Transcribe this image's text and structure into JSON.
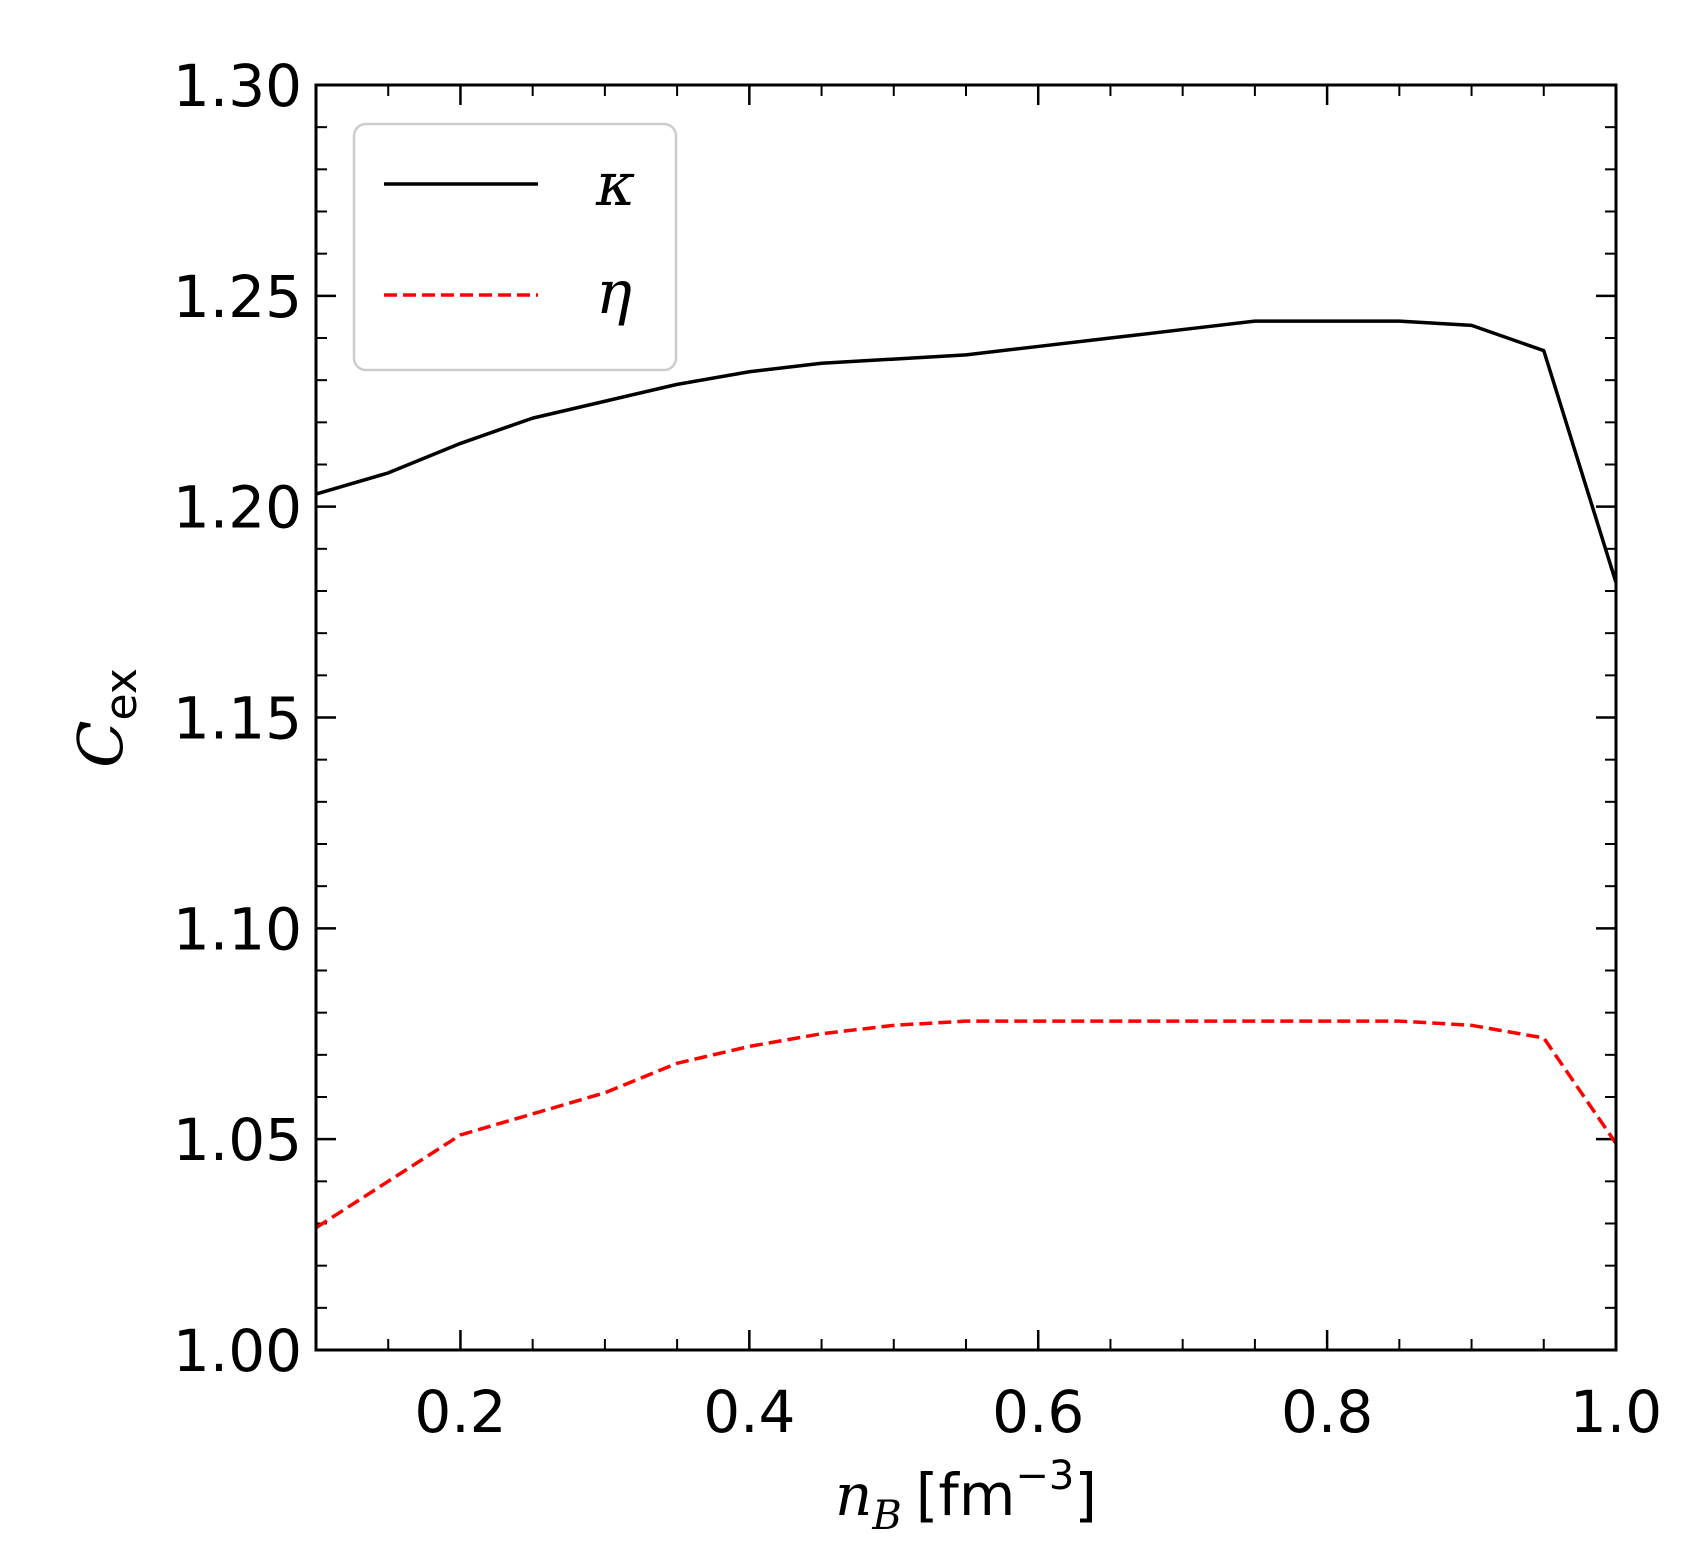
{
  "chart_data": {
    "type": "line",
    "title": "",
    "xlabel": {
      "var": "n",
      "sub": "B",
      "unit_open": "[fm",
      "exp": "−3",
      "unit_close": "]"
    },
    "ylabel": {
      "var": "C",
      "sub": "ex"
    },
    "xlim": [
      0.1,
      1.0
    ],
    "ylim": [
      1.0,
      1.3
    ],
    "xticks": [
      0.2,
      0.4,
      0.6,
      0.8,
      1.0
    ],
    "xtick_labels": [
      "0.2",
      "0.4",
      "0.6",
      "0.8",
      "1.0"
    ],
    "xminor_step": 0.05,
    "yticks": [
      1.0,
      1.05,
      1.1,
      1.15,
      1.2,
      1.25,
      1.3
    ],
    "ytick_labels": [
      "1.00",
      "1.05",
      "1.10",
      "1.15",
      "1.20",
      "1.25",
      "1.30"
    ],
    "yminor_step": 0.01,
    "grid": false,
    "legend_position": "top-left",
    "x": [
      0.1,
      0.15,
      0.2,
      0.25,
      0.3,
      0.35,
      0.4,
      0.45,
      0.5,
      0.55,
      0.6,
      0.65,
      0.7,
      0.75,
      0.8,
      0.85,
      0.9,
      0.95,
      1.0
    ],
    "series": [
      {
        "name": "κ",
        "color": "#000000",
        "style": "solid",
        "values": [
          1.203,
          1.208,
          1.215,
          1.221,
          1.225,
          1.229,
          1.232,
          1.234,
          1.235,
          1.236,
          1.238,
          1.24,
          1.242,
          1.244,
          1.244,
          1.244,
          1.243,
          1.237,
          1.182
        ]
      },
      {
        "name": "η",
        "color": "#ff0000",
        "style": "dashed",
        "values": [
          1.029,
          1.04,
          1.051,
          1.056,
          1.061,
          1.068,
          1.072,
          1.075,
          1.077,
          1.078,
          1.078,
          1.078,
          1.078,
          1.078,
          1.078,
          1.078,
          1.077,
          1.074,
          1.049
        ]
      }
    ]
  }
}
